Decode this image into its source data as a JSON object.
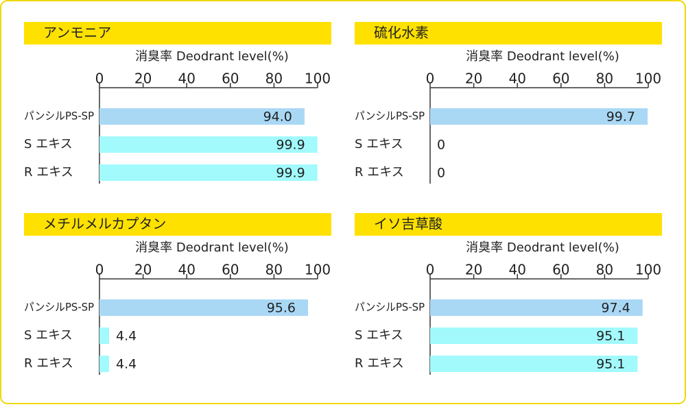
{
  "chart_data": [
    {
      "type": "bar",
      "title": "アンモニア",
      "xlabel": "消臭率 Deodrant level(%)",
      "categories": [
        "パンシルPS-SP",
        "S エキス",
        "R エキス"
      ],
      "values": [
        94.0,
        99.9,
        99.9
      ],
      "value_labels": [
        "94.0",
        "99.9",
        "99.9"
      ],
      "colors": [
        "#a9d8f5",
        "#a2fafc",
        "#a2fafc"
      ],
      "xlim": [
        0,
        100
      ],
      "xticks": [
        0,
        20,
        40,
        60,
        80,
        100
      ]
    },
    {
      "type": "bar",
      "title": "硫化水素",
      "xlabel": "消臭率 Deodrant level(%)",
      "categories": [
        "パンシルPS-SP",
        "S エキス",
        "R エキス"
      ],
      "values": [
        99.7,
        0,
        0
      ],
      "value_labels": [
        "99.7",
        "0",
        "0"
      ],
      "colors": [
        "#a9d8f5",
        "#a2fafc",
        "#a2fafc"
      ],
      "xlim": [
        0,
        100
      ],
      "xticks": [
        0,
        20,
        40,
        60,
        80,
        100
      ]
    },
    {
      "type": "bar",
      "title": "メチルメルカプタン",
      "xlabel": "消臭率 Deodrant level(%)",
      "categories": [
        "パンシルPS-SP",
        "S エキス",
        "R エキス"
      ],
      "values": [
        95.6,
        4.4,
        4.4
      ],
      "value_labels": [
        "95.6",
        "4.4",
        "4.4"
      ],
      "colors": [
        "#a9d8f5",
        "#a2fafc",
        "#a2fafc"
      ],
      "xlim": [
        0,
        100
      ],
      "xticks": [
        0,
        20,
        40,
        60,
        80,
        100
      ]
    },
    {
      "type": "bar",
      "title": "イソ吉草酸",
      "xlabel": "消臭率 Deodrant level(%)",
      "categories": [
        "パンシルPS-SP",
        "S エキス",
        "R エキス"
      ],
      "values": [
        97.4,
        95.1,
        95.1
      ],
      "value_labels": [
        "97.4",
        "95.1",
        "95.1"
      ],
      "colors": [
        "#a9d8f5",
        "#a2fafc",
        "#a2fafc"
      ],
      "xlim": [
        0,
        100
      ],
      "xticks": [
        0,
        20,
        40,
        60,
        80,
        100
      ]
    }
  ]
}
